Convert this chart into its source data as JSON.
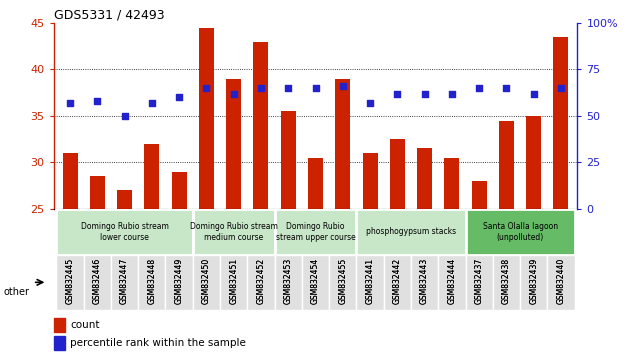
{
  "title": "GDS5331 / 42493",
  "samples": [
    "GSM832445",
    "GSM832446",
    "GSM832447",
    "GSM832448",
    "GSM832449",
    "GSM832450",
    "GSM832451",
    "GSM832452",
    "GSM832453",
    "GSM832454",
    "GSM832455",
    "GSM832441",
    "GSM832442",
    "GSM832443",
    "GSM832444",
    "GSM832437",
    "GSM832438",
    "GSM832439",
    "GSM832440"
  ],
  "counts": [
    31.0,
    28.5,
    27.0,
    32.0,
    29.0,
    44.5,
    39.0,
    43.0,
    35.5,
    30.5,
    39.0,
    31.0,
    32.5,
    31.5,
    30.5,
    28.0,
    34.5,
    35.0,
    43.5
  ],
  "percentiles_right": [
    57,
    58,
    50,
    57,
    60,
    65,
    62,
    65,
    65,
    65,
    66,
    57,
    62,
    62,
    62,
    65,
    65,
    62,
    65
  ],
  "bar_color": "#cc2200",
  "dot_color": "#2222cc",
  "ylim_left": [
    25,
    45
  ],
  "ylim_right": [
    0,
    100
  ],
  "yticks_left": [
    25,
    30,
    35,
    40,
    45
  ],
  "yticks_right": [
    0,
    25,
    50,
    75,
    100
  ],
  "groups": [
    {
      "label": "Domingo Rubio stream\nlower course",
      "start": 0,
      "end": 4,
      "color": "#c8e6c8"
    },
    {
      "label": "Domingo Rubio stream\nmedium course",
      "start": 5,
      "end": 7,
      "color": "#c8e6c8"
    },
    {
      "label": "Domingo Rubio\nstream upper course",
      "start": 8,
      "end": 10,
      "color": "#c8e6c8"
    },
    {
      "label": "phosphogypsum stacks",
      "start": 11,
      "end": 14,
      "color": "#c8e6c8"
    },
    {
      "label": "Santa Olalla lagoon\n(unpolluted)",
      "start": 15,
      "end": 18,
      "color": "#66bb66"
    }
  ],
  "legend_count_label": "count",
  "legend_pct_label": "percentile rank within the sample",
  "ylabel_left_color": "#cc2200",
  "ylabel_right_color": "#2222cc",
  "other_label": "other"
}
